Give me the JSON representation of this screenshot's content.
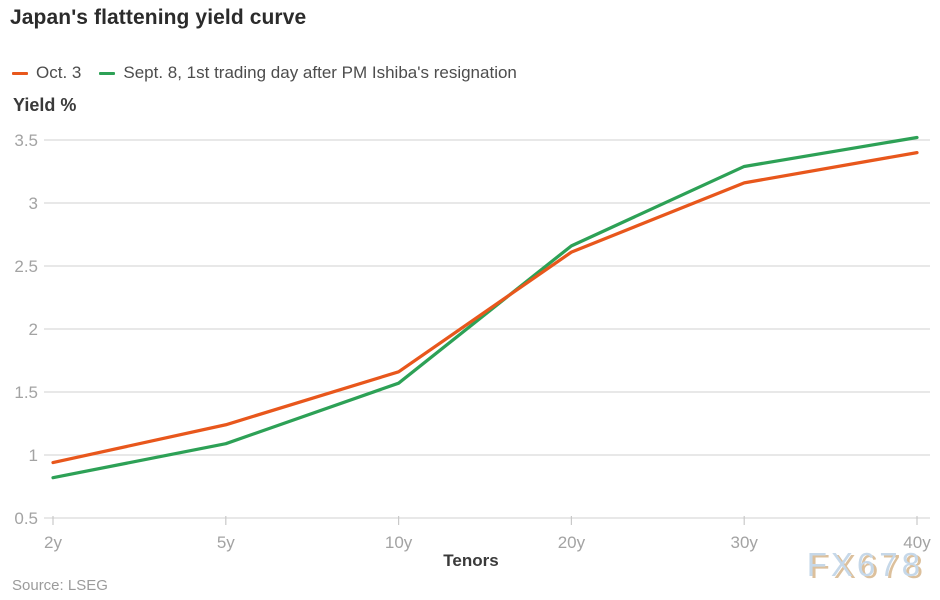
{
  "title": "Japan's flattening yield curve",
  "source": "Source: LSEG",
  "watermark": "FX678",
  "colors": {
    "accent_orange": "#e8571c",
    "accent_green": "#2da156",
    "gridline": "#d9d9d9",
    "axis_tick": "#c9c9c9",
    "tick_text": "#a3a3a3",
    "title_text": "#2b2b2b",
    "watermark_blue": "#c6d8e9",
    "watermark_shadow": "#dcc09c"
  },
  "chart_data": {
    "type": "line",
    "title": "Japan's flattening yield curve",
    "xlabel": "Tenors",
    "ylabel": "Yield %",
    "categories": [
      "2y",
      "5y",
      "10y",
      "20y",
      "30y",
      "40y"
    ],
    "series": [
      {
        "name": "Oct. 3",
        "color": "#e8571c",
        "values": [
          0.94,
          1.24,
          1.66,
          2.61,
          3.16,
          3.4
        ]
      },
      {
        "name": "Sept. 8, 1st trading day after PM Ishiba's resignation",
        "color": "#2da156",
        "values": [
          0.82,
          1.09,
          1.57,
          2.66,
          3.29,
          3.52
        ]
      }
    ],
    "ylim": [
      0.5,
      3.5
    ],
    "yticks": [
      0.5,
      1,
      1.5,
      2,
      2.5,
      3,
      3.5
    ],
    "ytick_labels": [
      "0.5",
      "1",
      "1.5",
      "2",
      "2.5",
      "3",
      "3.5"
    ],
    "grid": "horizontal",
    "legend_position": "top-left"
  }
}
